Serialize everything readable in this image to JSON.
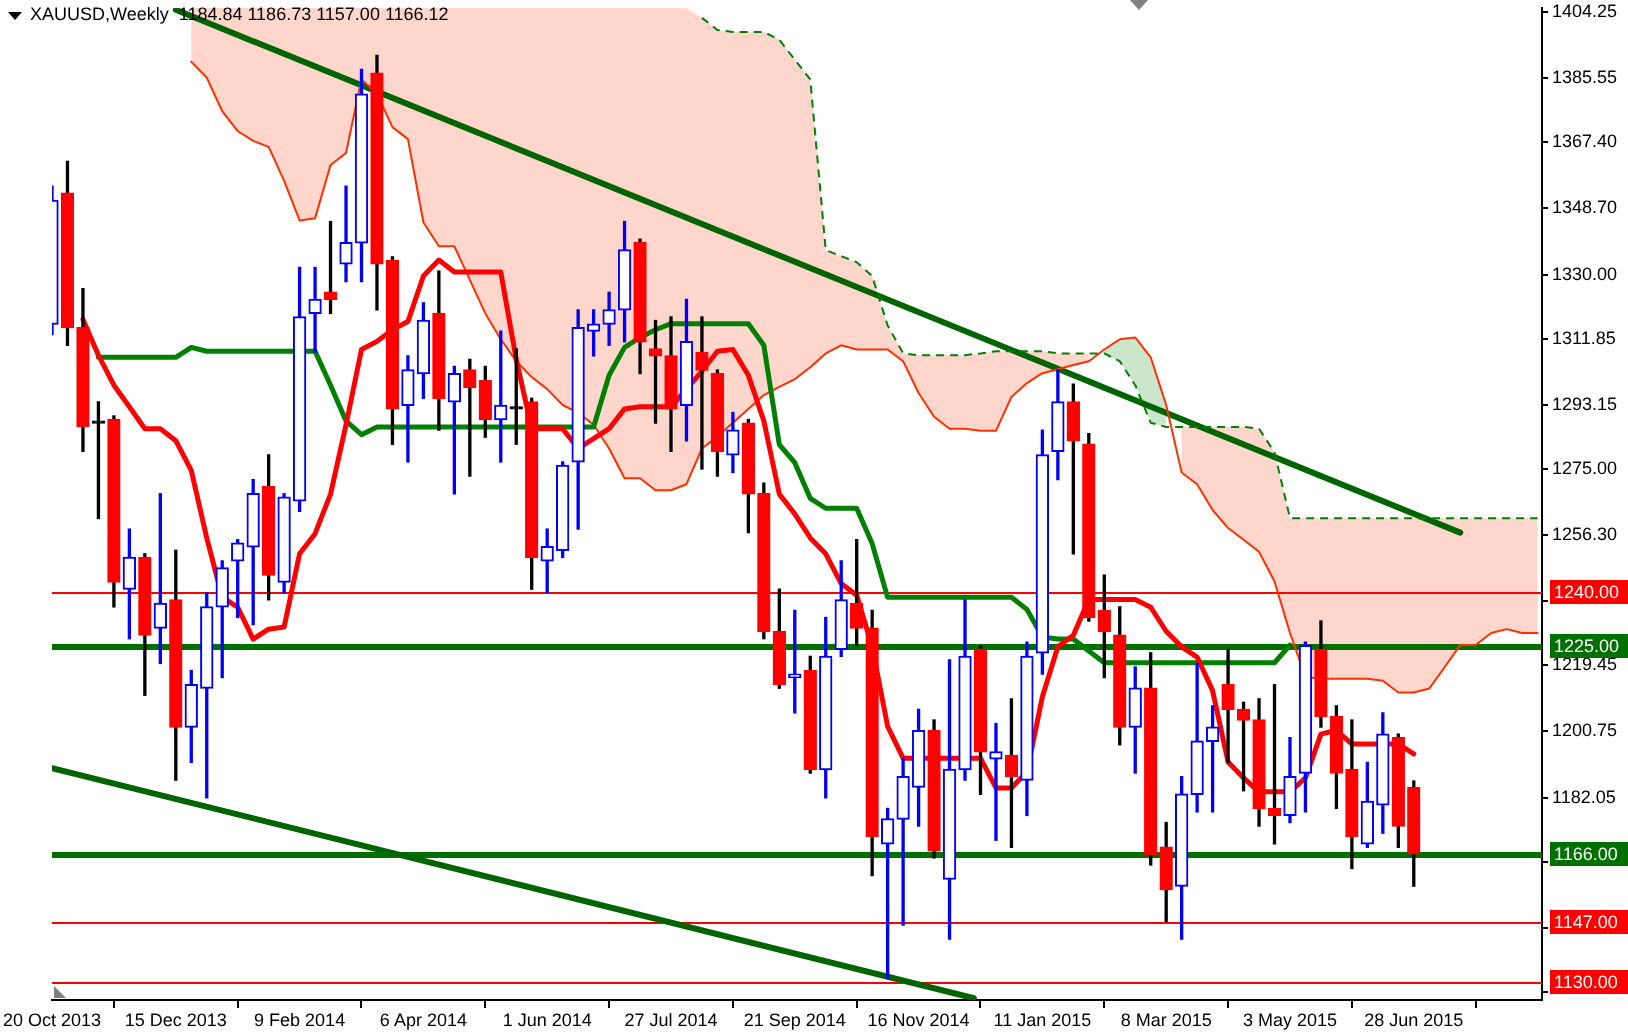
{
  "chart_data": {
    "type": "candlestick",
    "title": "XAUUSD,Weekly  1184.84 1186.73 1157.00 1166.12",
    "x": [
      "2013-10-20",
      "2013-10-27",
      "2013-11-03",
      "2013-11-10",
      "2013-11-17",
      "2013-11-24",
      "2013-12-01",
      "2013-12-08",
      "2013-12-15",
      "2013-12-22",
      "2013-12-29",
      "2014-01-05",
      "2014-01-12",
      "2014-01-19",
      "2014-01-26",
      "2014-02-02",
      "2014-02-09",
      "2014-02-16",
      "2014-02-23",
      "2014-03-02",
      "2014-03-09",
      "2014-03-16",
      "2014-03-23",
      "2014-03-30",
      "2014-04-06",
      "2014-04-13",
      "2014-04-20",
      "2014-04-27",
      "2014-05-04",
      "2014-05-11",
      "2014-05-18",
      "2014-05-25",
      "2014-06-01",
      "2014-06-08",
      "2014-06-15",
      "2014-06-22",
      "2014-06-29",
      "2014-07-06",
      "2014-07-13",
      "2014-07-20",
      "2014-07-27",
      "2014-08-03",
      "2014-08-10",
      "2014-08-17",
      "2014-08-24",
      "2014-08-31",
      "2014-09-07",
      "2014-09-14",
      "2014-09-21",
      "2014-09-28",
      "2014-10-05",
      "2014-10-12",
      "2014-10-19",
      "2014-10-26",
      "2014-11-02",
      "2014-11-09",
      "2014-11-16",
      "2014-11-23",
      "2014-11-30",
      "2014-12-07",
      "2014-12-14",
      "2014-12-21",
      "2014-12-28",
      "2015-01-04",
      "2015-01-11",
      "2015-01-18",
      "2015-01-25",
      "2015-02-01",
      "2015-02-08",
      "2015-02-15",
      "2015-02-22",
      "2015-03-01",
      "2015-03-08",
      "2015-03-15",
      "2015-03-22",
      "2015-03-29",
      "2015-04-05",
      "2015-04-12",
      "2015-04-19",
      "2015-04-26",
      "2015-05-03",
      "2015-05-10",
      "2015-05-17",
      "2015-05-24",
      "2015-05-31",
      "2015-06-07",
      "2015-06-14",
      "2015-06-21",
      "2015-06-28"
    ],
    "ohlc": [
      [
        1316,
        1355,
        1313,
        1351
      ],
      [
        1353,
        1362,
        1310,
        1315
      ],
      [
        1315,
        1326,
        1280,
        1287
      ],
      [
        1288,
        1294,
        1261,
        1288
      ],
      [
        1289,
        1290,
        1236,
        1243
      ],
      [
        1241,
        1258,
        1227,
        1250
      ],
      [
        1250,
        1251,
        1211,
        1228
      ],
      [
        1230,
        1268,
        1220,
        1237
      ],
      [
        1238,
        1252,
        1187,
        1202
      ],
      [
        1202,
        1218,
        1192,
        1214
      ],
      [
        1213,
        1240,
        1182,
        1236
      ],
      [
        1236,
        1249,
        1216,
        1247
      ],
      [
        1249,
        1255,
        1233,
        1254
      ],
      [
        1253,
        1272,
        1231,
        1268
      ],
      [
        1270,
        1279,
        1238,
        1245
      ],
      [
        1243,
        1268,
        1240,
        1267
      ],
      [
        1266,
        1332,
        1263,
        1318
      ],
      [
        1319,
        1332,
        1308,
        1323
      ],
      [
        1325,
        1345,
        1319,
        1323
      ],
      [
        1333,
        1355,
        1328,
        1339
      ],
      [
        1339,
        1388,
        1328,
        1381
      ],
      [
        1387,
        1392,
        1320,
        1333
      ],
      [
        1334,
        1335,
        1282,
        1292
      ],
      [
        1293,
        1307,
        1277,
        1303
      ],
      [
        1302,
        1322,
        1295,
        1317
      ],
      [
        1319,
        1331,
        1286,
        1295
      ],
      [
        1294,
        1304,
        1268,
        1302
      ],
      [
        1303,
        1306,
        1273,
        1298
      ],
      [
        1300,
        1304,
        1284,
        1289
      ],
      [
        1289,
        1314,
        1277,
        1293
      ],
      [
        1292,
        1309,
        1282,
        1292
      ],
      [
        1294,
        1295,
        1241,
        1250
      ],
      [
        1249,
        1258,
        1240,
        1253
      ],
      [
        1252,
        1277,
        1250,
        1276
      ],
      [
        1277,
        1320,
        1258,
        1315
      ],
      [
        1314,
        1320,
        1307,
        1316
      ],
      [
        1316,
        1325,
        1310,
        1320
      ],
      [
        1320,
        1345,
        1311,
        1337
      ],
      [
        1339,
        1340,
        1302,
        1311
      ],
      [
        1309,
        1317,
        1288,
        1307
      ],
      [
        1307,
        1318,
        1280,
        1292
      ],
      [
        1293,
        1323,
        1283,
        1311
      ],
      [
        1308,
        1318,
        1275,
        1303
      ],
      [
        1302,
        1303,
        1273,
        1280
      ],
      [
        1279,
        1291,
        1274,
        1286
      ],
      [
        1288,
        1289,
        1257,
        1268
      ],
      [
        1268,
        1271,
        1227,
        1229
      ],
      [
        1229,
        1241,
        1213,
        1214
      ],
      [
        1216,
        1235,
        1206,
        1217
      ],
      [
        1218,
        1222,
        1189,
        1190
      ],
      [
        1190,
        1233,
        1182,
        1222
      ],
      [
        1224,
        1249,
        1222,
        1238
      ],
      [
        1237,
        1255,
        1225,
        1230
      ],
      [
        1230,
        1235,
        1160,
        1171
      ],
      [
        1169,
        1179,
        1131,
        1176
      ],
      [
        1176,
        1193,
        1146,
        1188
      ],
      [
        1185,
        1207,
        1174,
        1201
      ],
      [
        1201,
        1204,
        1165,
        1167
      ],
      [
        1159,
        1221,
        1142,
        1190
      ],
      [
        1190,
        1238,
        1187,
        1222
      ],
      [
        1224,
        1225,
        1183,
        1195
      ],
      [
        1193,
        1203,
        1170,
        1195
      ],
      [
        1194,
        1210,
        1168,
        1188
      ],
      [
        1187,
        1226,
        1177,
        1222
      ],
      [
        1223,
        1286,
        1217,
        1279
      ],
      [
        1280,
        1303,
        1272,
        1294
      ],
      [
        1294,
        1299,
        1251,
        1283
      ],
      [
        1282,
        1285,
        1232,
        1233
      ],
      [
        1235,
        1245,
        1216,
        1229
      ],
      [
        1228,
        1236,
        1197,
        1202
      ],
      [
        1202,
        1219,
        1189,
        1213
      ],
      [
        1213,
        1223,
        1163,
        1166
      ],
      [
        1168,
        1175,
        1147,
        1156
      ],
      [
        1157,
        1188,
        1142,
        1183
      ],
      [
        1183,
        1220,
        1178,
        1198
      ],
      [
        1198,
        1208,
        1178,
        1202
      ],
      [
        1214,
        1224,
        1192,
        1207
      ],
      [
        1207,
        1209,
        1184,
        1204
      ],
      [
        1204,
        1210,
        1174,
        1179
      ],
      [
        1179,
        1214,
        1169,
        1177
      ],
      [
        1177,
        1199,
        1175,
        1188
      ],
      [
        1189,
        1226,
        1178,
        1225
      ],
      [
        1224,
        1232,
        1202,
        1205
      ],
      [
        1205,
        1208,
        1179,
        1189
      ],
      [
        1190,
        1204,
        1162,
        1171
      ],
      [
        1169,
        1192,
        1168,
        1181
      ],
      [
        1180,
        1206,
        1172,
        1200
      ],
      [
        1199,
        1200,
        1168,
        1174
      ],
      [
        1184.84,
        1186.73,
        1157.0,
        1166.12
      ]
    ],
    "colors": [
      "#0000ff",
      "#ff0000",
      "#ff0000",
      "#000000",
      "#ff0000",
      "#0000ff",
      "#ff0000",
      "#0000ff",
      "#ff0000",
      "#0000ff",
      "#0000ff",
      "#0000ff",
      "#0000ff",
      "#0000ff",
      "#ff0000",
      "#0000ff",
      "#0000ff",
      "#0000ff",
      "#ff0000",
      "#0000ff",
      "#0000ff",
      "#ff0000",
      "#ff0000",
      "#0000ff",
      "#0000ff",
      "#ff0000",
      "#0000ff",
      "#ff0000",
      "#ff0000",
      "#0000ff",
      "#000000",
      "#ff0000",
      "#0000ff",
      "#0000ff",
      "#0000ff",
      "#0000ff",
      "#0000ff",
      "#0000ff",
      "#ff0000",
      "#ff0000",
      "#ff0000",
      "#0000ff",
      "#ff0000",
      "#ff0000",
      "#0000ff",
      "#ff0000",
      "#ff0000",
      "#ff0000",
      "#0000ff",
      "#ff0000",
      "#0000ff",
      "#0000ff",
      "#ff0000",
      "#ff0000",
      "#0000ff",
      "#0000ff",
      "#0000ff",
      "#ff0000",
      "#0000ff",
      "#0000ff",
      "#ff0000",
      "#0000ff",
      "#ff0000",
      "#0000ff",
      "#0000ff",
      "#0000ff",
      "#ff0000",
      "#ff0000",
      "#ff0000",
      "#ff0000",
      "#0000ff",
      "#ff0000",
      "#ff0000",
      "#0000ff",
      "#0000ff",
      "#0000ff",
      "#ff0000",
      "#ff0000",
      "#ff0000",
      "#ff0000",
      "#0000ff",
      "#0000ff",
      "#ff0000",
      "#ff0000",
      "#ff0000",
      "#0000ff",
      "#0000ff",
      "#ff0000",
      "#ff0000"
    ],
    "series": [
      {
        "type": "line",
        "color": "#ff0000",
        "values": [
          null,
          null,
          1317.3,
          1307.2,
          1298.7,
          1292.6,
          1286.4,
          1286.4,
          1283,
          1274.6,
          1255.5,
          1238.7,
          1235.9,
          1226.9,
          1229.7,
          1230.3,
          1251,
          1256.7,
          1267.9,
          1287.5,
          1308.8,
          1311.1,
          1314.4,
          1316.7,
          1329.6,
          1334.1,
          1330.7,
          1330.7,
          1330.7,
          1330.7,
          1306,
          1286.4,
          1286.4,
          1286.4,
          1280.8,
          1283.6,
          1286.4,
          1292,
          1292.6,
          1292.6,
          1292.6,
          1297.6,
          1302.7,
          1308.3,
          1308.8,
          1301.5,
          1288.6,
          1267.9,
          1262.3,
          1255.5,
          1251,
          1242.6,
          1239.3,
          1224.7,
          1202.2,
          1193.2,
          1193.2,
          1193.2,
          1193.2,
          1193.2,
          1193.2,
          1184.8,
          1184.8,
          1189.3,
          1210.6,
          1224.7,
          1228,
          1238.1,
          1238.1,
          1238.1,
          1238.1,
          1235.9,
          1229.1,
          1224.7,
          1221.8,
          1212.3,
          1192.1,
          1187.6,
          1183.7,
          1183.7,
          1183.7,
          1187.6,
          1200,
          1201.1,
          1197.2,
          1197.2,
          1197.2,
          1197.2,
          1194.4
        ]
      },
      {
        "type": "line",
        "color": "#008000",
        "values": [
          null,
          null,
          null,
          1306.6,
          1306.6,
          1306.6,
          1306.6,
          1306.6,
          1306.6,
          1309.4,
          1308.3,
          1308.3,
          1308.3,
          1308.3,
          1308.3,
          1308.3,
          1308.3,
          1308.3,
          1298.7,
          1288.6,
          1284.7,
          1286.9,
          1286.9,
          1286.9,
          1286.9,
          1286.9,
          1286.9,
          1286.9,
          1286.9,
          1286.9,
          1286.9,
          1286.9,
          1286.9,
          1286.9,
          1286.9,
          1286.9,
          1301.5,
          1309.4,
          1312.2,
          1314.4,
          1316.1,
          1316.1,
          1316.1,
          1316.1,
          1316.1,
          1316.1,
          1310,
          1281.9,
          1276.8,
          1266.7,
          1263.9,
          1263.9,
          1263.9,
          1253.9,
          1238.7,
          1238.7,
          1238.7,
          1238.7,
          1238.7,
          1238.7,
          1238.7,
          1238.7,
          1238.7,
          1235.3,
          1227.5,
          1226.9,
          1226.9,
          1223.5,
          1220.2,
          1220.2,
          1220.2,
          1220.2,
          1220.2,
          1220.2,
          1220.2,
          1220.2,
          1220.2,
          1220.2,
          1220.2,
          1220.2,
          1225.2,
          null,
          null,
          null,
          null,
          null,
          null,
          null,
          null
        ]
      },
      {
        "type": "line",
        "color": "#ff3000",
        "x": [
          "2013-12-22",
          "2013-12-29",
          "2014-01-05",
          "2014-01-12",
          "2014-01-19",
          "2014-01-26",
          "2014-02-02",
          "2014-02-09",
          "2014-02-16",
          "2014-02-23",
          "2014-03-02",
          "2014-03-09",
          "2014-03-16",
          "2014-03-23",
          "2014-03-30",
          "2014-04-06",
          "2014-04-13",
          "2014-04-20",
          "2014-04-27",
          "2014-05-04",
          "2014-05-11",
          "2014-05-18",
          "2014-05-25",
          "2014-06-01",
          "2014-06-08",
          "2014-06-15",
          "2014-06-22",
          "2014-06-29",
          "2014-07-06",
          "2014-07-13",
          "2014-07-20",
          "2014-07-27",
          "2014-08-03",
          "2014-08-10",
          "2014-08-17",
          "2014-08-24",
          "2014-08-31",
          "2014-09-07",
          "2014-09-14",
          "2014-09-21",
          "2014-09-28",
          "2014-10-05",
          "2014-10-12",
          "2014-10-19",
          "2014-10-26",
          "2014-11-02",
          "2014-11-09",
          "2014-11-16",
          "2014-11-23",
          "2014-11-30",
          "2014-12-07",
          "2014-12-14",
          "2014-12-21",
          "2014-12-28",
          "2015-01-04",
          "2015-01-11",
          "2015-01-18",
          "2015-01-25",
          "2015-02-01",
          "2015-02-08",
          "2015-02-15",
          "2015-02-22",
          "2015-03-01",
          "2015-03-08",
          "2015-03-15",
          "2015-03-22",
          "2015-03-29",
          "2015-04-05",
          "2015-04-12",
          "2015-04-19",
          "2015-04-26",
          "2015-05-03",
          "2015-05-10",
          "2015-05-17",
          "2015-05-24",
          "2015-05-31",
          "2015-06-07",
          "2015-06-14",
          "2015-06-21",
          "2015-06-28",
          "2015-07-05",
          "2015-07-12",
          "2015-07-19",
          "2015-07-26",
          "2015-08-02",
          "2015-08-09",
          "2015-08-16",
          "2015-08-23"
        ],
        "values": [
          1390.2,
          1385.7,
          1376.2,
          1370.6,
          1367.8,
          1366.1,
          1356.5,
          1345.3,
          1345.9,
          1361,
          1364.4,
          1385.2,
          1381.2,
          1371.7,
          1368.3,
          1344.8,
          1338,
          1338,
          1328.5,
          1319,
          1311.7,
          1305.5,
          1301,
          1297.6,
          1293.1,
          1290.9,
          1287.5,
          1280.8,
          1272.4,
          1272.4,
          1269,
          1269,
          1270.7,
          1280.8,
          1284.2,
          1288.1,
          1292,
          1295.9,
          1298.2,
          1300.4,
          1303.8,
          1307.7,
          1310,
          1308.8,
          1308.8,
          1308.8,
          1305.5,
          1296.5,
          1289.8,
          1286.4,
          1286.4,
          1285.8,
          1285.8,
          1295.4,
          1299.3,
          1302.1,
          1303.2,
          1304.4,
          1305.5,
          1308.8,
          1311.7,
          1312.2,
          1306.6,
          1293.1,
          1274,
          1270.7,
          1263.4,
          1258.3,
          1255,
          1251.6,
          1243.2,
          1228.6,
          1216.2,
          1215.7,
          1215.7,
          1215.7,
          1215.7,
          1215.1,
          1211.8,
          1211.8,
          1212.9,
          1219,
          1225.2,
          1225.2,
          1228.6,
          1229.7,
          1228.6,
          1228.6
        ],
        "lower": [
          1390.2,
          1385.7,
          1376.2,
          1370.6,
          1367.8,
          1366.1,
          1356.5,
          1345.3,
          1345.9,
          1361,
          1364.4,
          1385.2,
          1381.2,
          1371.7,
          1368.3,
          1344.8,
          1338,
          1338,
          1328.5,
          1319,
          1311.7,
          1305.5,
          1301,
          1297.6,
          1293.1,
          1290.9,
          1287.5,
          1280.8,
          1272.4,
          1272.4,
          1269,
          1269,
          1270.7,
          1280.8,
          1284.2,
          1288.1,
          1292,
          1295.9,
          1298.2,
          1300.4,
          1303.8,
          1307.7,
          1310,
          1308.8,
          1308.8,
          1308.8,
          1305.5,
          1296.5,
          1289.8,
          1286.4,
          1286.4,
          1285.8,
          1285.8,
          1295.4,
          1299.3,
          1302.1,
          1303.2,
          1304.4,
          1305.5,
          null,
          null,
          null,
          null,
          null,
          1274,
          1270.7,
          1263.4,
          1258.3,
          1255,
          1251.6,
          1243.2,
          1228.6,
          1216.2,
          1215.7,
          1215.7,
          1215.7,
          1215.7,
          1215.1,
          1211.8,
          1211.8,
          1212.9,
          1219,
          1225.2,
          1225.2,
          1228.6,
          1229.7,
          1228.6,
          1228.6
        ],
        "upper": [
          1405.4,
          1405.4,
          1405.4,
          1405.4,
          1405.4,
          1405.4,
          1405.4,
          1405.4,
          1405.4,
          1405.4,
          1405.4,
          1405.4,
          1405.4,
          1405.4,
          1405.4,
          1405.4,
          1405.4,
          1405.4,
          1405.4,
          1405.4,
          1405.4,
          1405.4,
          1405.4,
          1405.4,
          1405.4,
          1405.4,
          1405.4,
          1405.4,
          1405.4,
          1405.4,
          1405.4,
          1405.4,
          1405.4,
          1402.6,
          1399.2,
          1398.6,
          1398.6,
          1398.6,
          1396.4,
          1390.8,
          1385.2,
          1336.9,
          1335.2,
          1333.5,
          1329.6,
          1315.6,
          1307.7,
          1307.2,
          1307.2,
          1307.2,
          1307.2,
          1307.7,
          1308.3,
          1308.3,
          1308.3,
          1308.3,
          1307.7,
          1307.7,
          1307.7,
          null,
          null,
          null,
          null,
          null,
          1286.9,
          1286.9,
          1286.9,
          1286.9,
          1286.9,
          1286.4,
          1279.7,
          1261.1,
          1261.1,
          1261.1,
          1261.1,
          1261.1,
          1261.1,
          1261.1,
          1261.1,
          1261.1,
          1261.1,
          1261.1,
          1261.1,
          1261.1,
          1261.1,
          1261.1,
          1261.1,
          1261.1
        ]
      },
      {
        "type": "line",
        "color": "#008000",
        "line_style": "dashed",
        "x": [
          "2014-08-10",
          "2014-08-17",
          "2014-08-24",
          "2014-08-31",
          "2014-09-07",
          "2014-09-14",
          "2014-09-21",
          "2014-09-28",
          "2014-10-05",
          "2014-10-12",
          "2014-10-19",
          "2014-10-26",
          "2014-11-02",
          "2014-11-09",
          "2014-11-16",
          "2014-11-23",
          "2014-11-30",
          "2014-12-07",
          "2014-12-14",
          "2014-12-21",
          "2014-12-28",
          "2015-01-04",
          "2015-01-11",
          "2015-01-18",
          "2015-01-25",
          "2015-02-01",
          "2015-02-08",
          "2015-02-15",
          "2015-02-22",
          "2015-03-01",
          "2015-03-08",
          "2015-03-15",
          "2015-03-22",
          "2015-03-29",
          "2015-04-05",
          "2015-04-12",
          "2015-04-19",
          "2015-04-26",
          "2015-05-03",
          "2015-05-10",
          "2015-05-17",
          "2015-05-24",
          "2015-05-31",
          "2015-06-07",
          "2015-06-14",
          "2015-06-21",
          "2015-06-28",
          "2015-07-05",
          "2015-07-12",
          "2015-07-19",
          "2015-07-26",
          "2015-08-02",
          "2015-08-09",
          "2015-08-16",
          "2015-08-23"
        ],
        "values": [
          1402.6,
          1399.2,
          1398.6,
          1398.6,
          1398.6,
          1396.4,
          1390.8,
          1385.2,
          1336.9,
          1335.2,
          1333.5,
          1329.6,
          1315.6,
          1307.7,
          1307.2,
          1307.2,
          1307.2,
          1307.2,
          1307.7,
          1308.3,
          1308.3,
          1308.3,
          1308.3,
          1307.7,
          1307.7,
          1307.7,
          1307.7,
          1305.5,
          1298.7,
          1288.1,
          1286.9,
          1286.9,
          1286.9,
          1286.9,
          1286.9,
          1286.9,
          1286.4,
          1279.7,
          1261.1,
          1261.1,
          1261.1,
          1261.1,
          1261.1,
          1261.1,
          1261.1,
          1261.1,
          1261.1,
          1261.1,
          1261.1,
          1261.1,
          1261.1,
          1261.1,
          1261.1,
          1261.1,
          1261.1
        ],
        "lower": [
          null,
          null,
          null,
          null,
          null,
          null,
          null,
          null,
          null,
          null,
          null,
          null,
          null,
          null,
          null,
          null,
          null,
          null,
          null,
          null,
          null,
          null,
          null,
          null,
          null,
          null,
          1307.7,
          1305.5,
          1298.7,
          1288.1,
          1286.9,
          null,
          null,
          null,
          null,
          null,
          null,
          null,
          null,
          null,
          null,
          null,
          null,
          null,
          null,
          null,
          null,
          null,
          null,
          null,
          null,
          null,
          null,
          null,
          null
        ],
        "upper": [
          null,
          null,
          null,
          null,
          null,
          null,
          null,
          null,
          null,
          null,
          null,
          null,
          null,
          null,
          null,
          null,
          null,
          null,
          null,
          null,
          null,
          null,
          null,
          null,
          null,
          null,
          1308.8,
          1311.7,
          1312.2,
          1306.6,
          1293.1,
          null,
          null,
          null,
          null,
          null,
          null,
          null,
          null,
          null,
          null,
          null,
          null,
          null,
          null,
          null,
          null,
          null,
          null,
          null,
          null,
          null,
          null,
          null,
          null
        ]
      },
      {
        "type": "line",
        "color": "#006400",
        "x": [
          "2013-12-15",
          "2015-07-19"
        ],
        "values": [
          1404.9,
          1257
        ]
      },
      {
        "type": "line",
        "color": "#006400",
        "x": [
          "2013-10-20",
          "2014-12-11"
        ],
        "values": [
          1190.4,
          1125.3
        ]
      }
    ],
    "ref_lines": [
      {
        "axis": "y",
        "value": 1240,
        "label": "1240.00",
        "color": "#ff0000"
      },
      {
        "axis": "y",
        "value": 1225,
        "label": "1225.00",
        "color": "#007000"
      },
      {
        "axis": "y",
        "value": 1166,
        "label": "1166.00",
        "color": "#007000"
      },
      {
        "axis": "y",
        "value": 1147,
        "label": "1147.00",
        "color": "#ff0000"
      },
      {
        "axis": "y",
        "value": 1130,
        "label": "1130.00",
        "color": "#ff0000"
      }
    ],
    "xlim": [
      "2013-10-20",
      "2015-08-25"
    ],
    "xticks": [
      {
        "value": "2013-10-20",
        "label": "20 Oct 2013"
      },
      {
        "value": "2013-12-15",
        "label": "15 Dec 2013"
      },
      {
        "value": "2014-02-09",
        "label": "9 Feb 2014"
      },
      {
        "value": "2014-04-06",
        "label": "6 Apr 2014"
      },
      {
        "value": "2014-06-01",
        "label": "1 Jun 2014"
      },
      {
        "value": "2014-07-27",
        "label": "27 Jul 2014"
      },
      {
        "value": "2014-09-21",
        "label": "21 Sep 2014"
      },
      {
        "value": "2014-11-16",
        "label": "16 Nov 2014"
      },
      {
        "value": "2015-01-11",
        "label": "11 Jan 2015"
      },
      {
        "value": "2015-03-08",
        "label": "8 Mar 2015"
      },
      {
        "value": "2015-05-03",
        "label": "3 May 2015"
      },
      {
        "value": "2015-06-28",
        "label": "28 Jun 2015"
      }
    ],
    "ylim": [
      1124.8,
      1405.4
    ],
    "yticks": [
      1404.25,
      1385.55,
      {
        "value": 1367.4,
        "label": "1367.40"
      },
      {
        "value": 1348.7,
        "label": "1348.70"
      },
      {
        "value": 1330,
        "label": "1330.00"
      },
      1311.85,
      1293.15,
      {
        "value": 1275,
        "label": "1275.00"
      },
      {
        "value": 1256.3,
        "label": "1256.30"
      },
      {
        "value": 1237.6,
        "label": null
      },
      1219.45,
      {
        "value": 1200.75,
        "label": "1200.75"
      },
      1182.05,
      {
        "value": 1163.9,
        "label": null
      },
      {
        "value": 1145.2,
        "label": null
      },
      {
        "value": 1127.05,
        "label": null
      }
    ]
  }
}
